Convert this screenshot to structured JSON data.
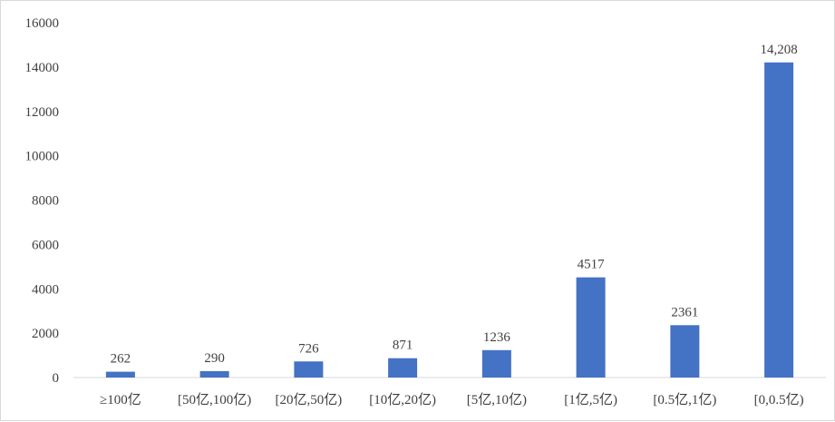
{
  "chart_data": {
    "type": "bar",
    "title": "",
    "xlabel": "",
    "ylabel": "",
    "categories": [
      "≥100亿",
      "[50亿,100亿)",
      "[20亿,50亿)",
      "[10亿,20亿)",
      "[5亿,10亿)",
      "[1亿,5亿)",
      "[0.5亿,1亿)",
      "[0,0.5亿)"
    ],
    "values": [
      262,
      290,
      726,
      871,
      1236,
      4517,
      2361,
      14208
    ],
    "data_labels": [
      "262",
      "290",
      "726",
      "871",
      "1236",
      "4517",
      "2361",
      "14,208"
    ],
    "ylim": [
      0,
      16000
    ],
    "yticks": [
      "0",
      "2000",
      "4000",
      "6000",
      "8000",
      "10000",
      "12000",
      "14000",
      "16000"
    ],
    "grid": false,
    "legend": "none",
    "bar_color": "#4472c4",
    "axis_color": "#d9d9d9"
  }
}
